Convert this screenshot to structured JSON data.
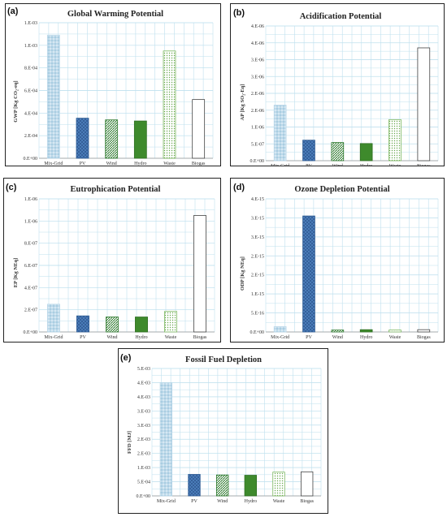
{
  "colors": {
    "mix_grid": "#bcd9ea",
    "pv": "#3f6fa8",
    "wind": "#2f7a2f",
    "hydro": "#3e8a2c",
    "waste": "#7cb861",
    "biogas": "#555555",
    "grid": "#bfe0ee",
    "frame": "#222222"
  },
  "chart_data": [
    {
      "panel_label": "(a)",
      "type": "bar",
      "title": "Global Warming Potential",
      "ylabel": "GWP [Kg CO₂-eq]",
      "categories": [
        "Mix-Grid",
        "PV",
        "Wind",
        "Hydro",
        "Waste",
        "Biogas"
      ],
      "values": [
        0.00109,
        0.000355,
        0.00034,
        0.00033,
        0.00095,
        0.00052
      ],
      "ylim": [
        0,
        0.0012
      ],
      "yticks": [
        0,
        0.0002,
        0.0004,
        0.0006,
        0.0008,
        0.001,
        0.0012
      ],
      "ytick_labels": [
        "0.E+00",
        "2.E-04",
        "4.E-04",
        "6.E-04",
        "8.E-04",
        "1.E-03",
        "1.E-03"
      ]
    },
    {
      "panel_label": "(b)",
      "type": "bar",
      "title": "Acidification Potential",
      "ylabel": "AP [Kg SO₂-Eq]",
      "categories": [
        "Mix-Grid",
        "PV",
        "Wind",
        "Hydro",
        "Waste",
        "Biogas"
      ],
      "values": [
        1.65e-06,
        6.1e-07,
        5.4e-07,
        5.1e-07,
        1.22e-06,
        3.35e-06
      ],
      "ylim": [
        0,
        4e-06
      ],
      "yticks": [
        0,
        5e-07,
        1e-06,
        1.5e-06,
        2e-06,
        2.5e-06,
        3e-06,
        3.5e-06,
        4e-06
      ],
      "ytick_labels": [
        "0.E+00",
        "5.E-07",
        "1.E-06",
        "2.E-06",
        "2.E-06",
        "3.E-06",
        "3.E-06",
        "4.E-06",
        "4.E-06"
      ]
    },
    {
      "panel_label": "(c)",
      "type": "bar",
      "title": "Eutrophication Potential",
      "ylabel": "EP [Kg NEq]",
      "categories": [
        "Mix-Grid",
        "PV",
        "Wind",
        "Hydro",
        "Waste",
        "Biogas"
      ],
      "values": [
        2.5e-07,
        1.45e-07,
        1.35e-07,
        1.35e-07,
        1.85e-07,
        1.05e-06
      ],
      "ylim": [
        0,
        1.2e-06
      ],
      "yticks": [
        0,
        2e-07,
        4e-07,
        6e-07,
        8e-07,
        1e-06,
        1.2e-06
      ],
      "ytick_labels": [
        "0.E+00",
        "2.E-07",
        "4.E-07",
        "6.E-07",
        "8.E-07",
        "1.E-06",
        "1.E-06"
      ]
    },
    {
      "panel_label": "(d)",
      "type": "bar",
      "title": "Ozone Depletion Potential",
      "ylabel": "ODP [Kg NEq]",
      "categories": [
        "Mix-Grid",
        "PV",
        "Wind",
        "Hydro",
        "Waste",
        "Biogas"
      ],
      "values": [
        1.4e-16,
        3.05e-15,
        5e-17,
        6e-17,
        5e-17,
        6e-17
      ],
      "ylim": [
        0,
        3.5e-15
      ],
      "yticks": [
        0,
        5e-16,
        1e-15,
        1.5e-15,
        2e-15,
        2.5e-15,
        3e-15,
        3.5e-15
      ],
      "ytick_labels": [
        "0.E+00",
        "5.E-16",
        "1.E-15",
        "2.E-15",
        "2.E-15",
        "3.E-15",
        "3.E-15",
        "4.E-15"
      ]
    },
    {
      "panel_label": "(e)",
      "type": "bar",
      "title": "Fossil Fuel Depletion",
      "ylabel": "FFD [MJ]",
      "categories": [
        "Mix-Grid",
        "PV",
        "Wind",
        "Hydro",
        "Waste",
        "Biogas"
      ],
      "values": [
        0.004,
        0.00076,
        0.00074,
        0.00073,
        0.00084,
        0.00085
      ],
      "ylim": [
        0,
        0.0045
      ],
      "yticks": [
        0,
        0.0005,
        0.001,
        0.0015,
        0.002,
        0.0025,
        0.003,
        0.0035,
        0.004,
        0.0045
      ],
      "ytick_labels": [
        "0.E+00",
        "5.E-04",
        "1.E-03",
        "2.E-03",
        "2.E-03",
        "3.E-03",
        "3.E-03",
        "4.E-03",
        "4.E-03",
        "5.E-03"
      ]
    }
  ]
}
